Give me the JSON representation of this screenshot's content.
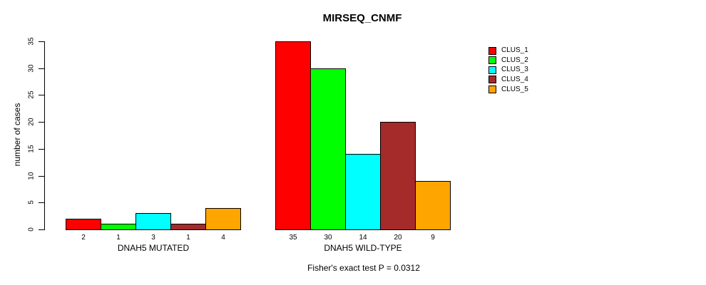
{
  "chart_data": {
    "type": "bar",
    "title": "MIRSEQ_CNMF",
    "ylabel": "number of cases",
    "ylim": [
      0,
      35
    ],
    "yticks": [
      0,
      5,
      10,
      15,
      20,
      25,
      30,
      35
    ],
    "categories": [
      "DNAH5 MUTATED",
      "DNAH5 WILD-TYPE"
    ],
    "series": [
      {
        "name": "CLUS_1",
        "color": "#FF0000",
        "values": [
          2,
          35
        ]
      },
      {
        "name": "CLUS_2",
        "color": "#00FF00",
        "values": [
          1,
          30
        ]
      },
      {
        "name": "CLUS_3",
        "color": "#00FFFF",
        "values": [
          3,
          14
        ]
      },
      {
        "name": "CLUS_4",
        "color": "#A52A2A",
        "values": [
          1,
          20
        ]
      },
      {
        "name": "CLUS_5",
        "color": "#FFA500",
        "values": [
          4,
          9
        ]
      }
    ],
    "bar_value_labels": [
      [
        "2",
        "1",
        "3",
        "1",
        "4"
      ],
      [
        "35",
        "30",
        "14",
        "20",
        "9"
      ]
    ],
    "annotation": "Fisher's exact test P = 0.0312",
    "legend_position": "right",
    "grid": false,
    "background": "#FFFFFF",
    "axis_color": "#000000"
  }
}
